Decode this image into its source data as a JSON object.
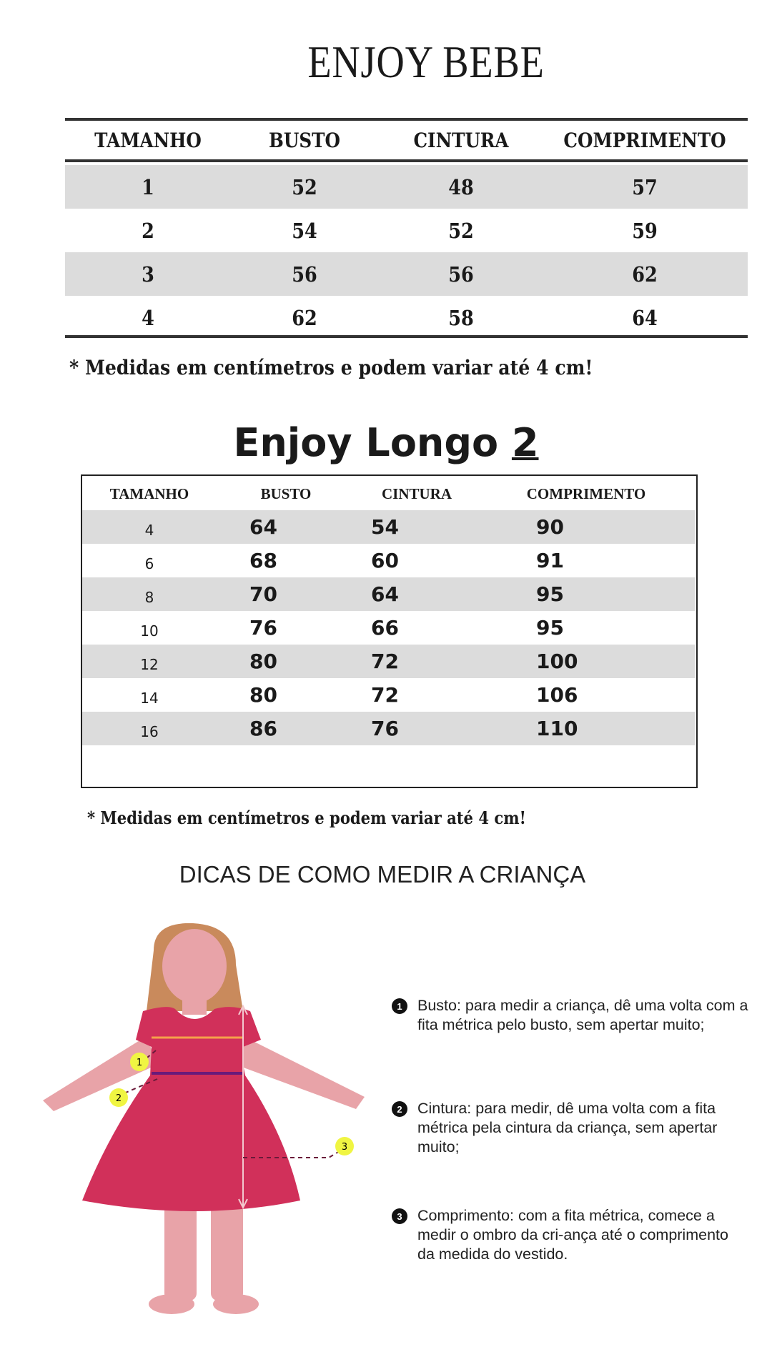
{
  "bebe": {
    "title": "ENJOY BEBE",
    "headers": [
      "TAMANHO",
      "BUSTO",
      "CINTURA",
      "COMPRIMENTO"
    ],
    "rows": [
      [
        "1",
        "52",
        "48",
        "57"
      ],
      [
        "2",
        "54",
        "52",
        "59"
      ],
      [
        "3",
        "56",
        "56",
        "62"
      ],
      [
        "4",
        "62",
        "58",
        "64"
      ]
    ],
    "note": "* Medidas em centímetros e podem variar até 4 cm!"
  },
  "longo": {
    "title": "Enjoy Longo",
    "title_number": "2",
    "headers": [
      "TAMANHO",
      "BUSTO",
      "CINTURA",
      "COMPRIMENTO"
    ],
    "rows": [
      [
        "4",
        "64",
        "54",
        "90"
      ],
      [
        "6",
        "68",
        "60",
        "91"
      ],
      [
        "8",
        "70",
        "64",
        "95"
      ],
      [
        "10",
        "76",
        "66",
        "95"
      ],
      [
        "12",
        "80",
        "72",
        "100"
      ],
      [
        "14",
        "80",
        "72",
        "106"
      ],
      [
        "16",
        "86",
        "76",
        "110"
      ]
    ],
    "note": "* Medidas em centímetros e podem variar até 4 cm!"
  },
  "tips": {
    "title": "DICAS DE COMO MEDIR A CRIANÇA",
    "markers": [
      "1",
      "2",
      "3"
    ],
    "items": [
      {
        "num": "1",
        "text": "Busto: para medir a criança, dê uma volta com a fita métrica pelo busto, sem apertar muito;"
      },
      {
        "num": "2",
        "text": "Cintura: para medir, dê uma volta com a fita métrica pela cintura da criança, sem apertar muito;"
      },
      {
        "num": "3",
        "text": "Comprimento: com a fita métrica, comece a medir o ombro da cri-ança até o comprimento da medida do vestido."
      }
    ]
  },
  "colors": {
    "row_shade": "#dcdcdc",
    "dress": "#d1305a",
    "skin": "#e8a3a8",
    "hair": "#c98a5c",
    "marker": "#f0f542"
  }
}
